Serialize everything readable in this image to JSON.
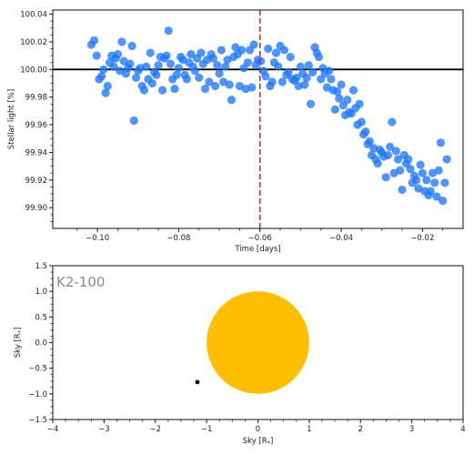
{
  "chart_data": [
    {
      "type": "scatter",
      "panel": "top",
      "xlabel": "Time [days]",
      "ylabel": "Stellar light [%]",
      "xlim": [
        -0.111,
        -0.01
      ],
      "ylim": [
        99.885,
        100.043
      ],
      "x_ticks": [
        -0.1,
        -0.08,
        -0.06,
        -0.04,
        -0.02
      ],
      "x_tick_labels": [
        "−0.10",
        "−0.08",
        "−0.06",
        "−0.04",
        "−0.02"
      ],
      "y_ticks": [
        99.9,
        99.92,
        99.94,
        99.96,
        99.98,
        100.0,
        100.02,
        100.04
      ],
      "y_tick_labels": [
        "99.90",
        "99.92",
        "99.94",
        "99.96",
        "99.98",
        "100.00",
        "100.02",
        "100.04"
      ],
      "reference_line": {
        "y": 100.0,
        "color": "#000000"
      },
      "marker_line": {
        "x": -0.06,
        "color": "#d62728",
        "style": "dashed"
      },
      "point_color": "#1f77ff",
      "points": [
        [
          -0.1015,
          100.018
        ],
        [
          -0.1008,
          100.021
        ],
        [
          -0.1002,
          100.01
        ],
        [
          -0.0996,
          99.993
        ],
        [
          -0.099,
          99.995
        ],
        [
          -0.0985,
          100.0
        ],
        [
          -0.098,
          99.983
        ],
        [
          -0.0975,
          99.988
        ],
        [
          -0.097,
          100.005
        ],
        [
          -0.0965,
          100.01
        ],
        [
          -0.096,
          100.002
        ],
        [
          -0.0955,
          100.008
        ],
        [
          -0.095,
          100.011
        ],
        [
          -0.0945,
          99.999
        ],
        [
          -0.094,
          100.02
        ],
        [
          -0.0935,
          100.006
        ],
        [
          -0.093,
          99.997
        ],
        [
          -0.0925,
          100.001
        ],
        [
          -0.092,
          100.004
        ],
        [
          -0.0915,
          100.017
        ],
        [
          -0.091,
          99.963
        ],
        [
          -0.0905,
          99.994
        ],
        [
          -0.09,
          99.999
        ],
        [
          -0.0895,
          100.001
        ],
        [
          -0.089,
          99.988
        ],
        [
          -0.0885,
          99.985
        ],
        [
          -0.088,
          100.002
        ],
        [
          -0.0875,
          99.993
        ],
        [
          -0.087,
          100.012
        ],
        [
          -0.0865,
          99.99
        ],
        [
          -0.086,
          99.998
        ],
        [
          -0.0855,
          99.996
        ],
        [
          -0.085,
          100.003
        ],
        [
          -0.0845,
          100.009
        ],
        [
          -0.084,
          99.985
        ],
        [
          -0.0835,
          100.008
        ],
        [
          -0.083,
          100.01
        ],
        [
          -0.0825,
          100.028
        ],
        [
          -0.082,
          100.004
        ],
        [
          -0.0815,
          99.993
        ],
        [
          -0.081,
          99.986
        ],
        [
          -0.0805,
          99.996
        ],
        [
          -0.08,
          100.001
        ],
        [
          -0.0795,
          100.009
        ],
        [
          -0.079,
          100.007
        ],
        [
          -0.0785,
          99.996
        ],
        [
          -0.078,
          99.993
        ],
        [
          -0.0775,
          100.005
        ],
        [
          -0.077,
          100.011
        ],
        [
          -0.0765,
          100.002
        ],
        [
          -0.076,
          99.999
        ],
        [
          -0.0755,
          100.008
        ],
        [
          -0.075,
          99.994
        ],
        [
          -0.0745,
          100.012
        ],
        [
          -0.074,
          100.004
        ],
        [
          -0.0735,
          99.986
        ],
        [
          -0.073,
          100.007
        ],
        [
          -0.0725,
          99.991
        ],
        [
          -0.072,
          100.011
        ],
        [
          -0.0715,
          100.008
        ],
        [
          -0.071,
          99.988
        ],
        [
          -0.0705,
          100.003
        ],
        [
          -0.07,
          99.997
        ],
        [
          -0.0695,
          100.014
        ],
        [
          -0.069,
          99.991
        ],
        [
          -0.0685,
          100.002
        ],
        [
          -0.068,
          100.007
        ],
        [
          -0.0675,
          99.989
        ],
        [
          -0.067,
          99.978
        ],
        [
          -0.0665,
          100.009
        ],
        [
          -0.066,
          100.016
        ],
        [
          -0.0655,
          100.011
        ],
        [
          -0.065,
          99.988
        ],
        [
          -0.0645,
          100.014
        ],
        [
          -0.064,
          100.001
        ],
        [
          -0.0635,
          99.986
        ],
        [
          -0.063,
          100.005
        ],
        [
          -0.0625,
          100.014
        ],
        [
          -0.062,
          99.987
        ],
        [
          -0.0615,
          100.018
        ],
        [
          -0.061,
          100.003
        ],
        [
          -0.0605,
          100.007
        ],
        [
          -0.0598,
          100.006
        ],
        [
          -0.0592,
          99.999
        ],
        [
          -0.0586,
          99.995
        ],
        [
          -0.058,
          100.015
        ],
        [
          -0.0575,
          99.988
        ],
        [
          -0.057,
          99.991
        ],
        [
          -0.0565,
          100.005
        ],
        [
          -0.056,
          100.012
        ],
        [
          -0.0555,
          100.002
        ],
        [
          -0.055,
          100.017
        ],
        [
          -0.0545,
          99.991
        ],
        [
          -0.054,
          100.014
        ],
        [
          -0.0535,
          99.996
        ],
        [
          -0.053,
          99.998
        ],
        [
          -0.0525,
          100.009
        ],
        [
          -0.052,
          99.993
        ],
        [
          -0.0515,
          99.992
        ],
        [
          -0.051,
          99.994
        ],
        [
          -0.0505,
          99.988
        ],
        [
          -0.05,
          100.002
        ],
        [
          -0.0495,
          99.997
        ],
        [
          -0.049,
          99.989
        ],
        [
          -0.0485,
          99.994
        ],
        [
          -0.048,
          100.003
        ],
        [
          -0.0475,
          99.975
        ],
        [
          -0.047,
          99.998
        ],
        [
          -0.0465,
          100.016
        ],
        [
          -0.046,
          100.012
        ],
        [
          -0.0455,
          100.009
        ],
        [
          -0.045,
          99.993
        ],
        [
          -0.0445,
          100.001
        ],
        [
          -0.044,
          99.997
        ],
        [
          -0.0435,
          99.987
        ],
        [
          -0.043,
          99.999
        ],
        [
          -0.0425,
          99.993
        ],
        [
          -0.042,
          99.985
        ],
        [
          -0.0415,
          99.971
        ],
        [
          -0.041,
          99.984
        ],
        [
          -0.0405,
          99.979
        ],
        [
          -0.04,
          99.989
        ],
        [
          -0.0395,
          99.974
        ],
        [
          -0.039,
          99.967
        ],
        [
          -0.0385,
          99.978
        ],
        [
          -0.038,
          99.969
        ],
        [
          -0.0375,
          99.968
        ],
        [
          -0.037,
          99.985
        ],
        [
          -0.0365,
          99.972
        ],
        [
          -0.036,
          99.96
        ],
        [
          -0.0355,
          99.975
        ],
        [
          -0.035,
          99.962
        ],
        [
          -0.0345,
          99.953
        ],
        [
          -0.034,
          99.955
        ],
        [
          -0.0335,
          99.946
        ],
        [
          -0.033,
          99.948
        ],
        [
          -0.0325,
          99.938
        ],
        [
          -0.032,
          99.943
        ],
        [
          -0.0315,
          99.935
        ],
        [
          -0.031,
          99.932
        ],
        [
          -0.0305,
          99.942
        ],
        [
          -0.03,
          99.94
        ],
        [
          -0.0295,
          99.937
        ],
        [
          -0.029,
          99.922
        ],
        [
          -0.0285,
          99.938
        ],
        [
          -0.028,
          99.944
        ],
        [
          -0.0275,
          99.962
        ],
        [
          -0.027,
          99.925
        ],
        [
          -0.0265,
          99.941
        ],
        [
          -0.026,
          99.935
        ],
        [
          -0.0255,
          99.927
        ],
        [
          -0.025,
          99.913
        ],
        [
          -0.0245,
          99.938
        ],
        [
          -0.024,
          99.932
        ],
        [
          -0.0235,
          99.935
        ],
        [
          -0.023,
          99.928
        ],
        [
          -0.0225,
          99.918
        ],
        [
          -0.022,
          99.923
        ],
        [
          -0.0215,
          99.92
        ],
        [
          -0.021,
          99.914
        ],
        [
          -0.0205,
          99.931
        ],
        [
          -0.02,
          99.925
        ],
        [
          -0.0195,
          99.912
        ],
        [
          -0.019,
          99.92
        ],
        [
          -0.0185,
          99.909
        ],
        [
          -0.018,
          99.912
        ],
        [
          -0.0175,
          99.925
        ],
        [
          -0.017,
          99.918
        ],
        [
          -0.0165,
          99.908
        ],
        [
          -0.016,
          99.927
        ],
        [
          -0.0155,
          99.947
        ],
        [
          -0.015,
          99.905
        ],
        [
          -0.0145,
          99.918
        ],
        [
          -0.014,
          99.935
        ]
      ]
    },
    {
      "type": "scatter",
      "panel": "bottom",
      "annotation": "K2-100",
      "xlabel": "Sky [R_*]",
      "ylabel": "Sky [R_*]",
      "xlim": [
        -4,
        4
      ],
      "ylim": [
        -1.5,
        1.5
      ],
      "x_ticks": [
        -4,
        -3,
        -2,
        -1,
        0,
        1,
        2,
        3,
        4
      ],
      "x_tick_labels": [
        "−4",
        "−3",
        "−2",
        "−1",
        "0",
        "1",
        "2",
        "3",
        "4"
      ],
      "y_ticks": [
        -1.5,
        -1.0,
        -0.5,
        0.0,
        0.5,
        1.0,
        1.5
      ],
      "y_tick_labels": [
        "−1.5",
        "−1.0",
        "−0.5",
        "0.0",
        "0.5",
        "1.0",
        "1.5"
      ],
      "star": {
        "x": 0,
        "y": 0,
        "radius": 1.0,
        "color": "#ffbf00"
      },
      "planet": {
        "x": -1.18,
        "y": -0.77,
        "radius": 0.05,
        "color": "#000000"
      }
    }
  ]
}
